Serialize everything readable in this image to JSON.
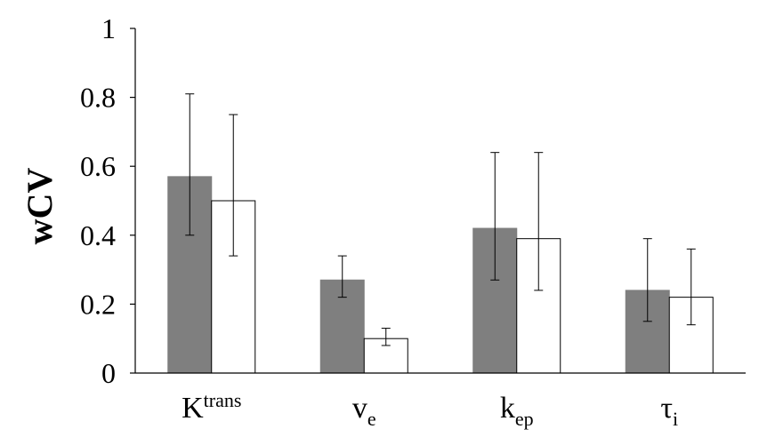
{
  "chart_data": {
    "type": "bar",
    "categories": [
      {
        "base": "K",
        "sup": "trans",
        "sub": ""
      },
      {
        "base": "v",
        "sup": "",
        "sub": "e"
      },
      {
        "base": "k",
        "sup": "",
        "sub": "ep"
      },
      {
        "base": "τ",
        "sup": "",
        "sub": "i"
      }
    ],
    "series": [
      {
        "values": [
          0.57,
          0.27,
          0.42,
          0.24
        ],
        "err_low": [
          0.4,
          0.22,
          0.27,
          0.15
        ],
        "err_high": [
          0.81,
          0.34,
          0.64,
          0.39
        ],
        "color": "#7f7f7f"
      },
      {
        "values": [
          0.5,
          0.1,
          0.39,
          0.22
        ],
        "err_low": [
          0.34,
          0.08,
          0.24,
          0.14
        ],
        "err_high": [
          0.75,
          0.13,
          0.64,
          0.36
        ],
        "color": "#ffffff"
      }
    ],
    "title": "",
    "xlabel": "",
    "ylabel": "wCV",
    "ylim": [
      0,
      1
    ],
    "yticks": [
      "0",
      "0.2",
      "0.4",
      "0.6",
      "0.8",
      "1"
    ],
    "grid": false
  }
}
